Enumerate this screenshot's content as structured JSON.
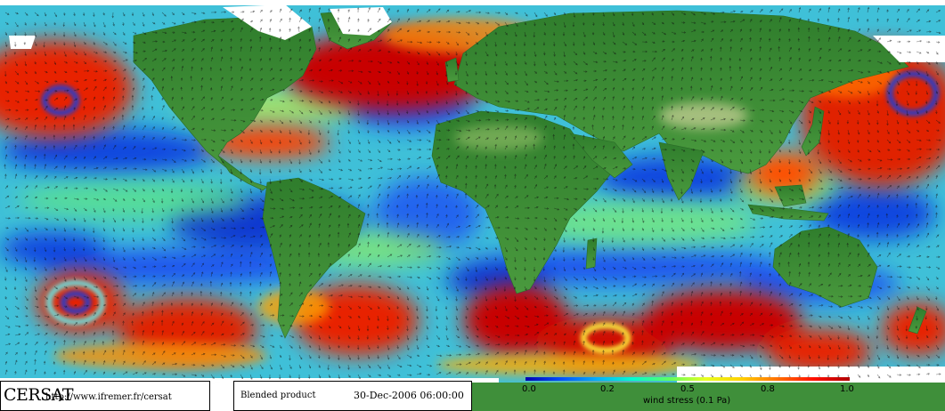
{
  "branding": {
    "name": "CERSAT",
    "url": "http://www.ifremer.fr/cersat"
  },
  "product": {
    "label": "Blended product",
    "datetime": "30-Dec-2006 06:00:00"
  },
  "legend": {
    "title": "wind stress (0.1 Pa)",
    "ticks": [
      "0.0",
      "0.2",
      "0.5",
      "0.8",
      "1.0"
    ],
    "colormap": [
      "#0000b0",
      "#0050ff",
      "#00b0ff",
      "#00ffd0",
      "#60ff60",
      "#e8ff20",
      "#ffd000",
      "#ff7000",
      "#ff1000",
      "#b00000"
    ]
  },
  "map": {
    "land_color": "#3f8f3a",
    "highland_color": "#b7c88a",
    "ice_color": "#ffffff",
    "ocean_base_color": "#42c8d8"
  }
}
